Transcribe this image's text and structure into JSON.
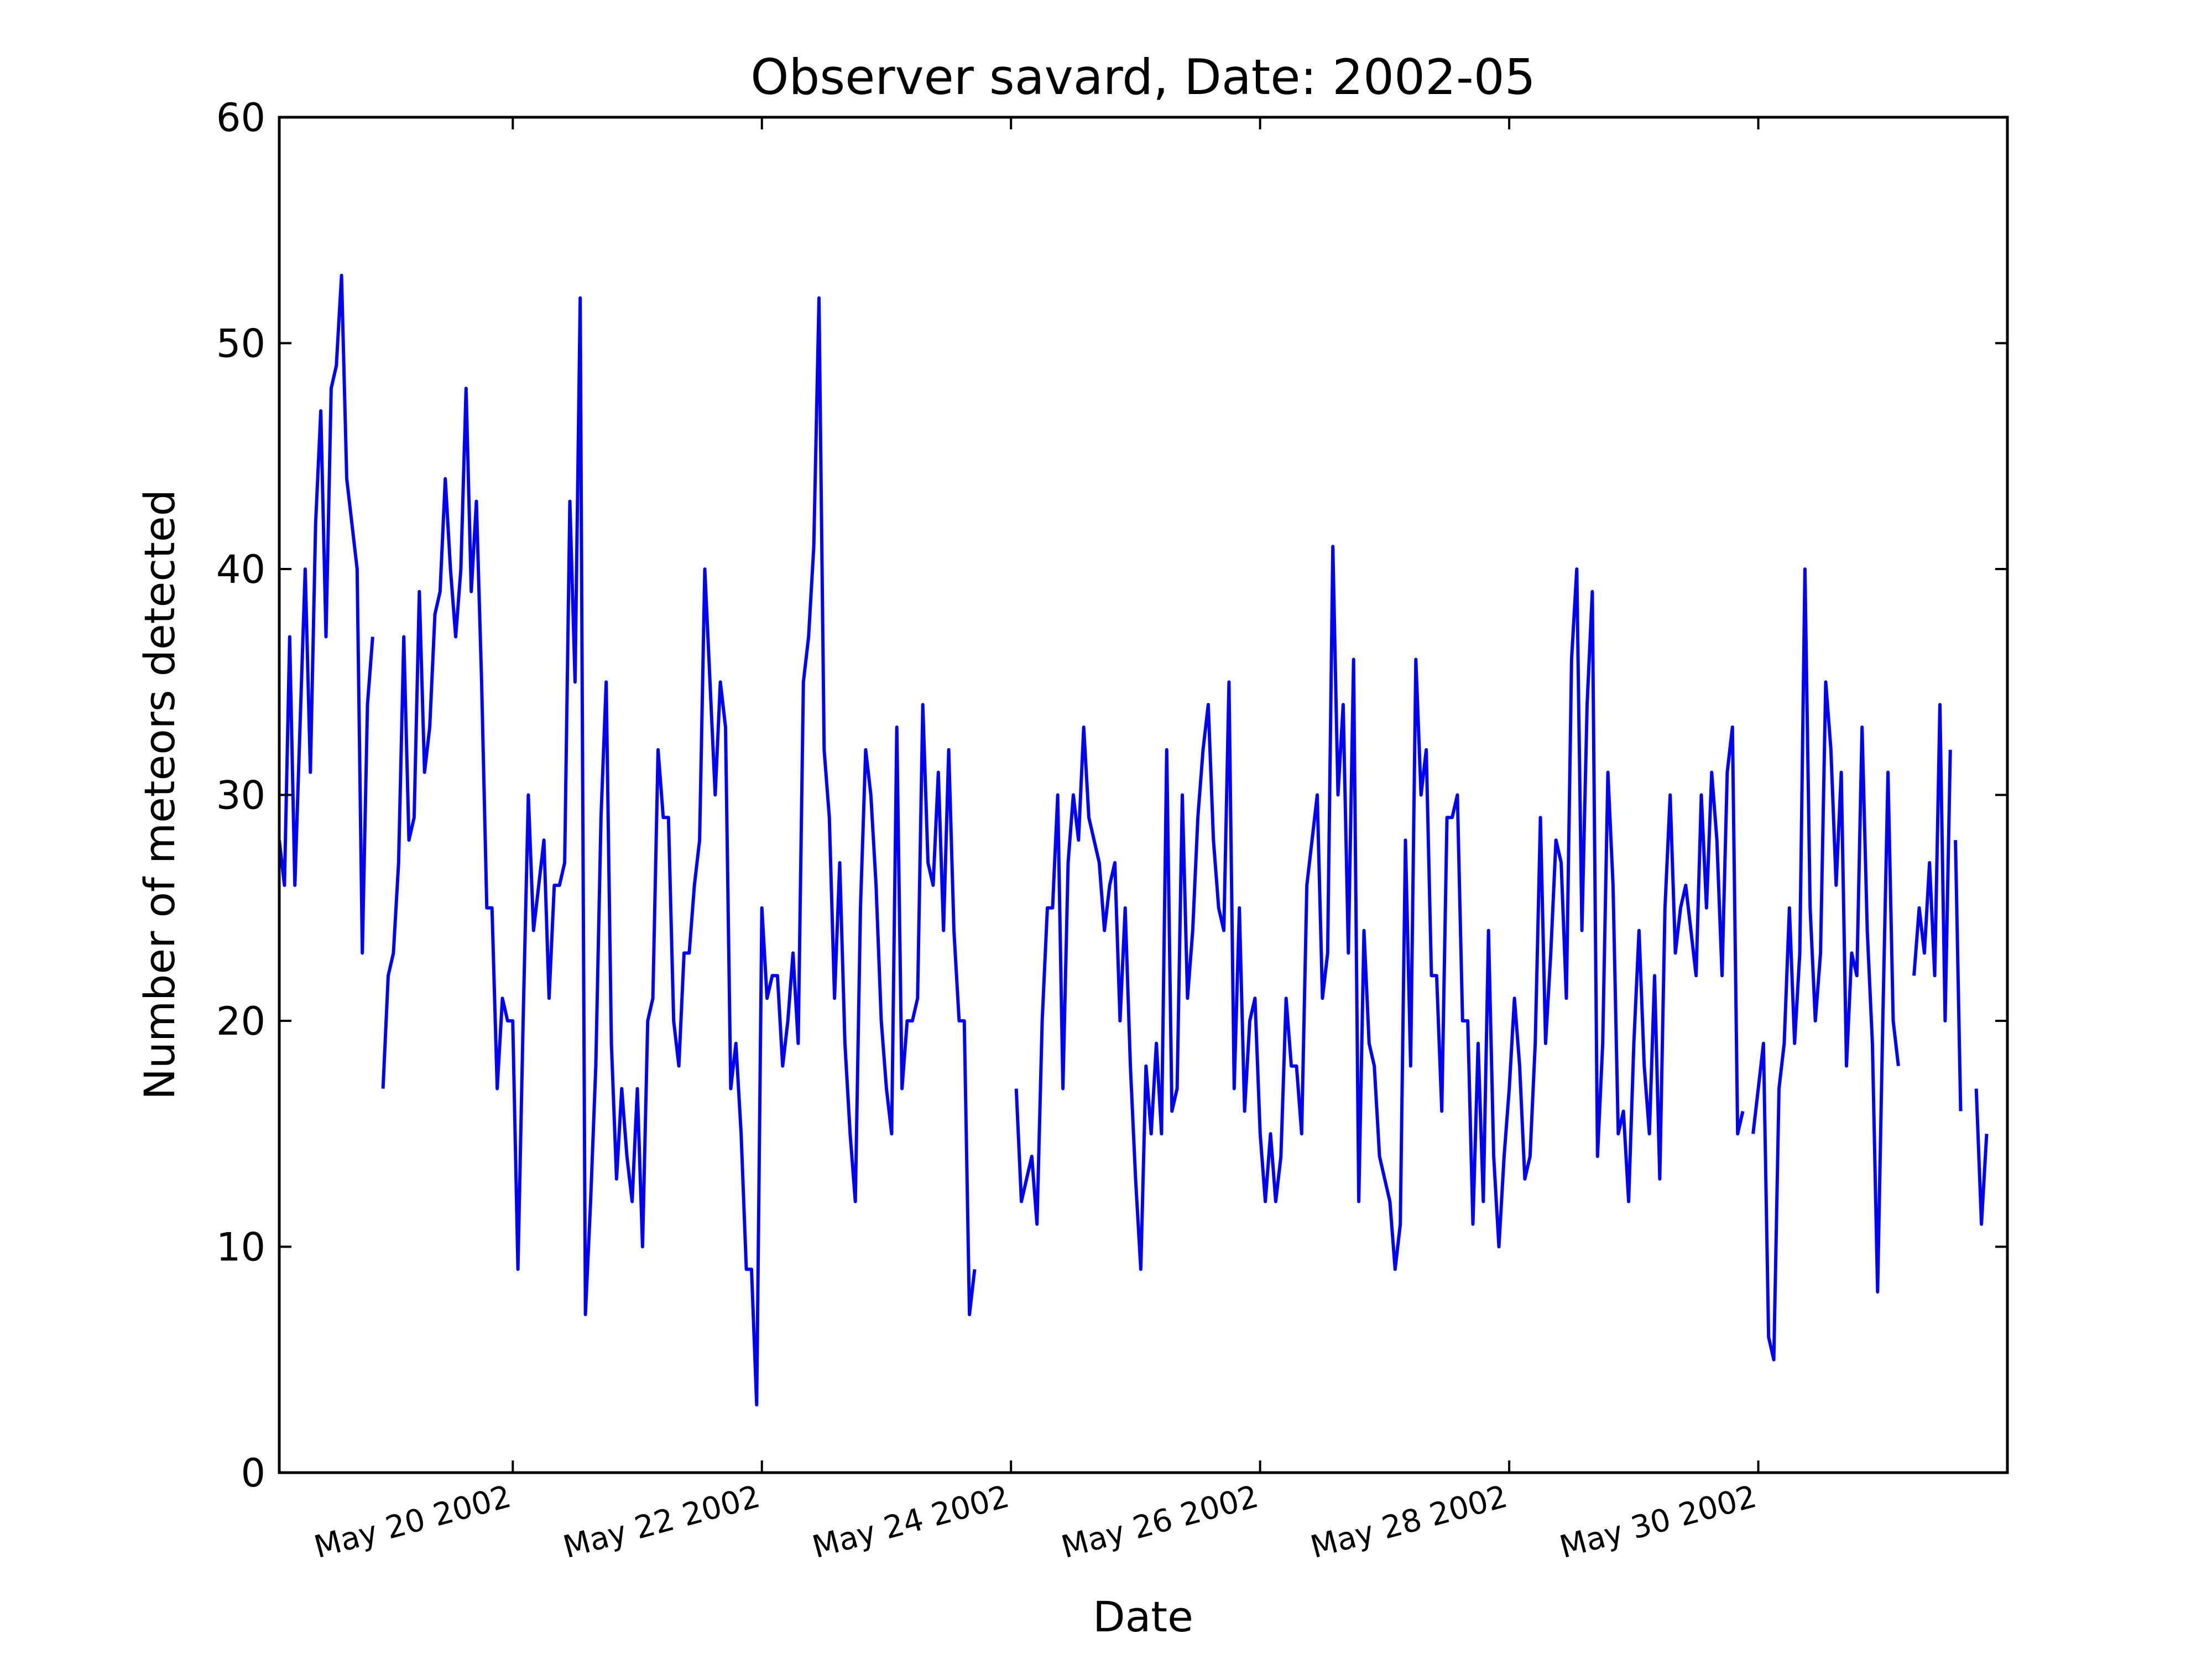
{
  "chart_data": {
    "type": "line",
    "title": "Observer savard, Date: 2002-05",
    "xlabel": "Date",
    "ylabel": "Number of meteors detected",
    "ylim": [
      0,
      60
    ],
    "yticks": [
      0,
      10,
      20,
      30,
      40,
      50,
      60
    ],
    "xlim_days": [
      18.125,
      32.0
    ],
    "xticks": [
      {
        "day": 20,
        "label": "May 20 2002"
      },
      {
        "day": 22,
        "label": "May 22 2002"
      },
      {
        "day": 24,
        "label": "May 24 2002"
      },
      {
        "day": 26,
        "label": "May 26 2002"
      },
      {
        "day": 28,
        "label": "May 28 2002"
      },
      {
        "day": 30,
        "label": "May 30 2002"
      }
    ],
    "line_color": "#0000ff",
    "series": [
      {
        "name": "savard",
        "segments": [
          {
            "start_day": 18.125,
            "step": 0.04167,
            "values": [
              28,
              26,
              37,
              26,
              33,
              40,
              31,
              42,
              47,
              37,
              48,
              49,
              53,
              44,
              42,
              40,
              23,
              34,
              37
            ]
          },
          {
            "start_day": 18.958,
            "step": 0.04167,
            "values": [
              17,
              22,
              23,
              27,
              37,
              28,
              29,
              39,
              31,
              33,
              38,
              39,
              44,
              40,
              37,
              40,
              48,
              39,
              43,
              35,
              25,
              25,
              17,
              21,
              20,
              20,
              9,
              20,
              30,
              24,
              26,
              28,
              21,
              26,
              26,
              27,
              43,
              35,
              52,
              7,
              12,
              18,
              29,
              35,
              19,
              13,
              17,
              14,
              12,
              17,
              10,
              20,
              21,
              32,
              29,
              29,
              20,
              18,
              23,
              23,
              26,
              28,
              40,
              35,
              30,
              35,
              33,
              17,
              19,
              15,
              9,
              9,
              3,
              25,
              21,
              22,
              22,
              18,
              20,
              23,
              19,
              35,
              37,
              41,
              52,
              32,
              29,
              21,
              27,
              19,
              15,
              12,
              25,
              32,
              30,
              26,
              20,
              17,
              15,
              33,
              17,
              20,
              20,
              21,
              34,
              27,
              26,
              31,
              24,
              32,
              24,
              20,
              20,
              7,
              9
            ]
          },
          {
            "start_day": 24.042,
            "step": 0.04167,
            "values": [
              17,
              12,
              13,
              14,
              11,
              20,
              25,
              25,
              30,
              17,
              27,
              30,
              28,
              33,
              29,
              28,
              27,
              24,
              26,
              27,
              20,
              25,
              18,
              13,
              9,
              18,
              15,
              19,
              15,
              32,
              16,
              17,
              30,
              21,
              24,
              29,
              32,
              34,
              28,
              25,
              24,
              35,
              17,
              25,
              16,
              20,
              21,
              15,
              12,
              15,
              12,
              14,
              21,
              18,
              18,
              15,
              26,
              28,
              30,
              21,
              23,
              41,
              30,
              34,
              23,
              36,
              12,
              24,
              19,
              18,
              14,
              13,
              12,
              9,
              11,
              28,
              18,
              36,
              30,
              32,
              22,
              22,
              16,
              29,
              29,
              30,
              20,
              20,
              11,
              19,
              12,
              24,
              14,
              10,
              14,
              17,
              21,
              18,
              13,
              14,
              19,
              29,
              19,
              23,
              28,
              27,
              21,
              36,
              40,
              24,
              34,
              39,
              14,
              19,
              31,
              26,
              15,
              16,
              12,
              19,
              24,
              18,
              15,
              22,
              13,
              25,
              30,
              23,
              25,
              26,
              24,
              22,
              30,
              25,
              31,
              28,
              22,
              31,
              33,
              15,
              16
            ]
          },
          {
            "start_day": 29.958,
            "step": 0.04167,
            "values": [
              15,
              17,
              19,
              6,
              5,
              17,
              19,
              25,
              19,
              23,
              40,
              25,
              20,
              23,
              35,
              32,
              26,
              31,
              18,
              23,
              22,
              33,
              24,
              19,
              8,
              20,
              31,
              20,
              18
            ]
          },
          {
            "start_day": 31.25,
            "step": 0.04167,
            "values": [
              22,
              25,
              23,
              27,
              22,
              34,
              20,
              32
            ]
          },
          {
            "start_day": 31.583,
            "step": 0.04167,
            "values": [
              28,
              16
            ]
          },
          {
            "start_day": 31.75,
            "step": 0.04167,
            "values": [
              17,
              11,
              15
            ]
          }
        ]
      }
    ]
  }
}
